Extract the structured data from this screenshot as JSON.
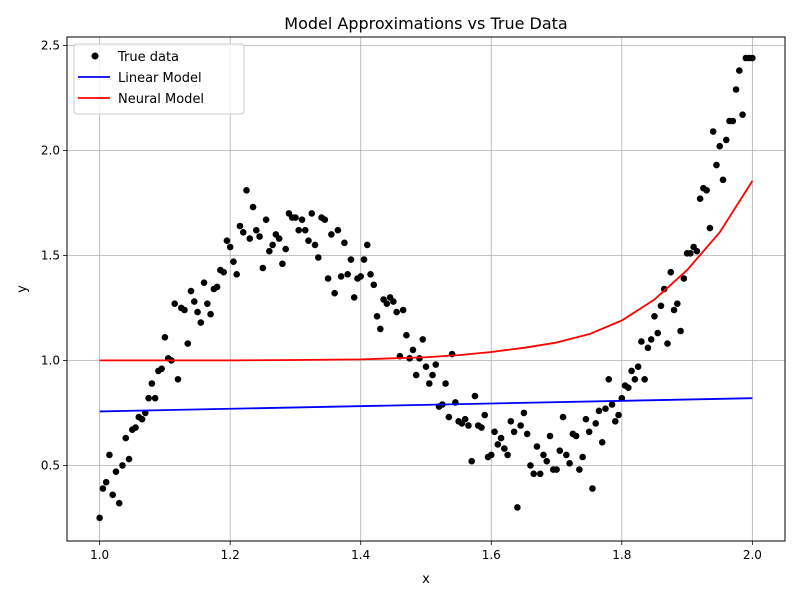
{
  "chart_data": {
    "type": "scatter",
    "title": "Model Approximations vs True Data",
    "xlabel": "x",
    "ylabel": "y",
    "xlim": [
      0.95,
      2.05
    ],
    "ylim": [
      0.14,
      2.54
    ],
    "grid": true,
    "legend_position": "top-left",
    "x_ticks": [
      1.0,
      1.2,
      1.4,
      1.6,
      1.8,
      2.0
    ],
    "x_tick_labels": [
      "1.0",
      "1.2",
      "1.4",
      "1.6",
      "1.8",
      "2.0"
    ],
    "y_ticks": [
      0.5,
      1.0,
      1.5,
      2.0,
      2.5
    ],
    "y_tick_labels": [
      "0.5",
      "1.0",
      "1.5",
      "2.0",
      "2.5"
    ],
    "colors": {
      "true_data": "#000000",
      "linear": "#0000ff",
      "neural": "#ff0000",
      "grid": "#b0b0b0"
    },
    "series": [
      {
        "name": "True data",
        "kind": "scatter",
        "points": [
          [
            1.0,
            0.25
          ],
          [
            1.005,
            0.39
          ],
          [
            1.01,
            0.42
          ],
          [
            1.015,
            0.55
          ],
          [
            1.02,
            0.36
          ],
          [
            1.025,
            0.47
          ],
          [
            1.03,
            0.32
          ],
          [
            1.035,
            0.5
          ],
          [
            1.04,
            0.63
          ],
          [
            1.045,
            0.53
          ],
          [
            1.05,
            0.67
          ],
          [
            1.055,
            0.68
          ],
          [
            1.06,
            0.73
          ],
          [
            1.065,
            0.72
          ],
          [
            1.07,
            0.75
          ],
          [
            1.075,
            0.82
          ],
          [
            1.08,
            0.89
          ],
          [
            1.085,
            0.82
          ],
          [
            1.09,
            0.95
          ],
          [
            1.095,
            0.96
          ],
          [
            1.1,
            1.11
          ],
          [
            1.105,
            1.01
          ],
          [
            1.11,
            1.0
          ],
          [
            1.115,
            1.27
          ],
          [
            1.12,
            0.91
          ],
          [
            1.125,
            1.25
          ],
          [
            1.13,
            1.24
          ],
          [
            1.135,
            1.08
          ],
          [
            1.14,
            1.33
          ],
          [
            1.145,
            1.28
          ],
          [
            1.15,
            1.23
          ],
          [
            1.155,
            1.18
          ],
          [
            1.16,
            1.37
          ],
          [
            1.165,
            1.27
          ],
          [
            1.17,
            1.22
          ],
          [
            1.175,
            1.34
          ],
          [
            1.18,
            1.35
          ],
          [
            1.185,
            1.43
          ],
          [
            1.19,
            1.42
          ],
          [
            1.195,
            1.57
          ],
          [
            1.2,
            1.54
          ],
          [
            1.205,
            1.47
          ],
          [
            1.21,
            1.41
          ],
          [
            1.215,
            1.64
          ],
          [
            1.22,
            1.61
          ],
          [
            1.225,
            1.81
          ],
          [
            1.23,
            1.58
          ],
          [
            1.235,
            1.73
          ],
          [
            1.24,
            1.62
          ],
          [
            1.245,
            1.59
          ],
          [
            1.25,
            1.44
          ],
          [
            1.255,
            1.67
          ],
          [
            1.26,
            1.52
          ],
          [
            1.265,
            1.55
          ],
          [
            1.27,
            1.6
          ],
          [
            1.275,
            1.58
          ],
          [
            1.28,
            1.46
          ],
          [
            1.285,
            1.53
          ],
          [
            1.29,
            1.7
          ],
          [
            1.295,
            1.68
          ],
          [
            1.3,
            1.68
          ],
          [
            1.305,
            1.62
          ],
          [
            1.31,
            1.67
          ],
          [
            1.315,
            1.62
          ],
          [
            1.32,
            1.57
          ],
          [
            1.325,
            1.7
          ],
          [
            1.33,
            1.55
          ],
          [
            1.335,
            1.49
          ],
          [
            1.34,
            1.68
          ],
          [
            1.345,
            1.67
          ],
          [
            1.35,
            1.39
          ],
          [
            1.355,
            1.6
          ],
          [
            1.36,
            1.32
          ],
          [
            1.365,
            1.62
          ],
          [
            1.37,
            1.4
          ],
          [
            1.375,
            1.56
          ],
          [
            1.38,
            1.41
          ],
          [
            1.385,
            1.48
          ],
          [
            1.39,
            1.3
          ],
          [
            1.395,
            1.39
          ],
          [
            1.4,
            1.4
          ],
          [
            1.405,
            1.48
          ],
          [
            1.41,
            1.55
          ],
          [
            1.415,
            1.41
          ],
          [
            1.42,
            1.36
          ],
          [
            1.425,
            1.21
          ],
          [
            1.43,
            1.15
          ],
          [
            1.435,
            1.29
          ],
          [
            1.44,
            1.27
          ],
          [
            1.445,
            1.3
          ],
          [
            1.45,
            1.28
          ],
          [
            1.455,
            1.23
          ],
          [
            1.46,
            1.02
          ],
          [
            1.465,
            1.24
          ],
          [
            1.47,
            1.12
          ],
          [
            1.475,
            1.01
          ],
          [
            1.48,
            1.05
          ],
          [
            1.485,
            0.93
          ],
          [
            1.49,
            1.01
          ],
          [
            1.495,
            1.1
          ],
          [
            1.5,
            0.97
          ],
          [
            1.505,
            0.89
          ],
          [
            1.51,
            0.93
          ],
          [
            1.515,
            0.98
          ],
          [
            1.52,
            0.78
          ],
          [
            1.525,
            0.79
          ],
          [
            1.53,
            0.89
          ],
          [
            1.535,
            0.73
          ],
          [
            1.54,
            1.03
          ],
          [
            1.545,
            0.8
          ],
          [
            1.55,
            0.71
          ],
          [
            1.555,
            0.7
          ],
          [
            1.56,
            0.72
          ],
          [
            1.565,
            0.69
          ],
          [
            1.57,
            0.52
          ],
          [
            1.575,
            0.83
          ],
          [
            1.58,
            0.69
          ],
          [
            1.585,
            0.68
          ],
          [
            1.59,
            0.74
          ],
          [
            1.595,
            0.54
          ],
          [
            1.6,
            0.55
          ],
          [
            1.605,
            0.66
          ],
          [
            1.61,
            0.6
          ],
          [
            1.615,
            0.63
          ],
          [
            1.62,
            0.58
          ],
          [
            1.625,
            0.55
          ],
          [
            1.63,
            0.71
          ],
          [
            1.635,
            0.66
          ],
          [
            1.64,
            0.3
          ],
          [
            1.645,
            0.69
          ],
          [
            1.65,
            0.75
          ],
          [
            1.655,
            0.65
          ],
          [
            1.66,
            0.5
          ],
          [
            1.665,
            0.46
          ],
          [
            1.67,
            0.59
          ],
          [
            1.675,
            0.46
          ],
          [
            1.68,
            0.55
          ],
          [
            1.685,
            0.52
          ],
          [
            1.69,
            0.64
          ],
          [
            1.695,
            0.48
          ],
          [
            1.7,
            0.48
          ],
          [
            1.705,
            0.57
          ],
          [
            1.71,
            0.73
          ],
          [
            1.715,
            0.55
          ],
          [
            1.72,
            0.51
          ],
          [
            1.725,
            0.65
          ],
          [
            1.73,
            0.64
          ],
          [
            1.735,
            0.48
          ],
          [
            1.74,
            0.54
          ],
          [
            1.745,
            0.72
          ],
          [
            1.75,
            0.66
          ],
          [
            1.755,
            0.39
          ],
          [
            1.76,
            0.7
          ],
          [
            1.765,
            0.76
          ],
          [
            1.77,
            0.61
          ],
          [
            1.775,
            0.77
          ],
          [
            1.78,
            0.91
          ],
          [
            1.785,
            0.79
          ],
          [
            1.79,
            0.71
          ],
          [
            1.795,
            0.74
          ],
          [
            1.8,
            0.82
          ],
          [
            1.805,
            0.88
          ],
          [
            1.81,
            0.87
          ],
          [
            1.815,
            0.95
          ],
          [
            1.82,
            0.91
          ],
          [
            1.825,
            0.97
          ],
          [
            1.83,
            1.09
          ],
          [
            1.835,
            0.91
          ],
          [
            1.84,
            1.06
          ],
          [
            1.845,
            1.1
          ],
          [
            1.85,
            1.21
          ],
          [
            1.855,
            1.13
          ],
          [
            1.86,
            1.26
          ],
          [
            1.865,
            1.34
          ],
          [
            1.87,
            1.08
          ],
          [
            1.875,
            1.42
          ],
          [
            1.88,
            1.24
          ],
          [
            1.885,
            1.27
          ],
          [
            1.89,
            1.14
          ],
          [
            1.895,
            1.39
          ],
          [
            1.9,
            1.51
          ],
          [
            1.905,
            1.51
          ],
          [
            1.91,
            1.54
          ],
          [
            1.915,
            1.52
          ],
          [
            1.92,
            1.77
          ],
          [
            1.925,
            1.82
          ],
          [
            1.93,
            1.81
          ],
          [
            1.935,
            1.63
          ],
          [
            1.94,
            2.09
          ],
          [
            1.945,
            1.93
          ],
          [
            1.95,
            2.02
          ],
          [
            1.955,
            1.86
          ],
          [
            1.96,
            2.05
          ],
          [
            1.965,
            2.14
          ],
          [
            1.97,
            2.14
          ],
          [
            1.975,
            2.29
          ],
          [
            1.98,
            2.38
          ],
          [
            1.985,
            2.17
          ],
          [
            1.99,
            2.44
          ],
          [
            1.995,
            2.44
          ],
          [
            2.0,
            2.44
          ]
        ]
      },
      {
        "name": "Linear Model",
        "kind": "line",
        "x": [
          1.0,
          2.0
        ],
        "y": [
          0.757,
          0.82
        ]
      },
      {
        "name": "Neural Model",
        "kind": "line",
        "x": [
          1.0,
          1.1,
          1.2,
          1.3,
          1.4,
          1.5,
          1.55,
          1.6,
          1.65,
          1.7,
          1.75,
          1.8,
          1.85,
          1.9,
          1.95,
          2.0
        ],
        "y": [
          1.0,
          1.0,
          1.0,
          1.002,
          1.005,
          1.015,
          1.025,
          1.04,
          1.06,
          1.085,
          1.125,
          1.19,
          1.29,
          1.43,
          1.61,
          1.855
        ]
      }
    ]
  }
}
